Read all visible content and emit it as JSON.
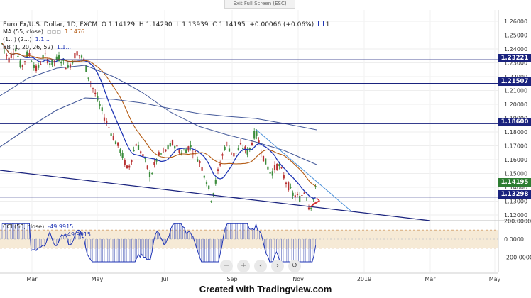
{
  "window": {
    "exit_fullscreen": "Exit Full Screen (ESC)"
  },
  "header": {
    "symbol": "Euro Fx/U.S. Dollar, 1D, FXCM",
    "open": "O 1.14129",
    "high": "H 1.14290",
    "low": "L 1.13939",
    "close": "C 1.14195",
    "change": "+0.00066 (+0.06%)",
    "count": "1"
  },
  "indicators": {
    "ma_main": {
      "label": "MA (55, close)",
      "value": "1.1476"
    },
    "ma_second": {
      "label": "(1...) (2...)",
      "value": "1.1..."
    },
    "bb": {
      "label": "BB (1, 20, 26, 52)",
      "value": "1.1..."
    },
    "cci": {
      "label": "CCI (50, close)",
      "value1": "-49.9915",
      "value2": "-49.9915"
    }
  },
  "price_axis": {
    "ticks": [
      "1.26000",
      "1.25000",
      "1.24000",
      "1.23000",
      "1.22000",
      "1.21000",
      "1.20000",
      "1.19000",
      "1.18000",
      "1.17000",
      "1.16000",
      "1.15000",
      "1.14000",
      "1.13000",
      "1.12000"
    ],
    "labels": [
      {
        "text": "1.23221",
        "color": "#1a237e"
      },
      {
        "text": "1.21507",
        "color": "#1a237e"
      },
      {
        "text": "1.18600",
        "color": "#1a237e"
      },
      {
        "text": "1.14195",
        "color": "#2e7d32"
      },
      {
        "text": "1.13298",
        "color": "#1a237e"
      }
    ]
  },
  "cci_axis": {
    "ticks": [
      "200.0000",
      "0.0000",
      "-200.0000"
    ]
  },
  "time_axis": {
    "labels": [
      "Mar",
      "May",
      "Jul",
      "Sep",
      "Nov",
      "2019",
      "Mar",
      "May"
    ]
  },
  "nav": {
    "zoom_out": "−",
    "zoom_in": "+",
    "back": "‹",
    "forward": "›",
    "reset": "↺"
  },
  "watermark": "Created with Tradingview.com",
  "colors": {
    "up": "#3c8d3c",
    "down": "#b83232",
    "level": "#1a237e",
    "ma_blue": "#1f35b5",
    "ma_brown": "#b35a12",
    "ma_slate": "#455a9a",
    "cci": "#1f35b5"
  }
}
